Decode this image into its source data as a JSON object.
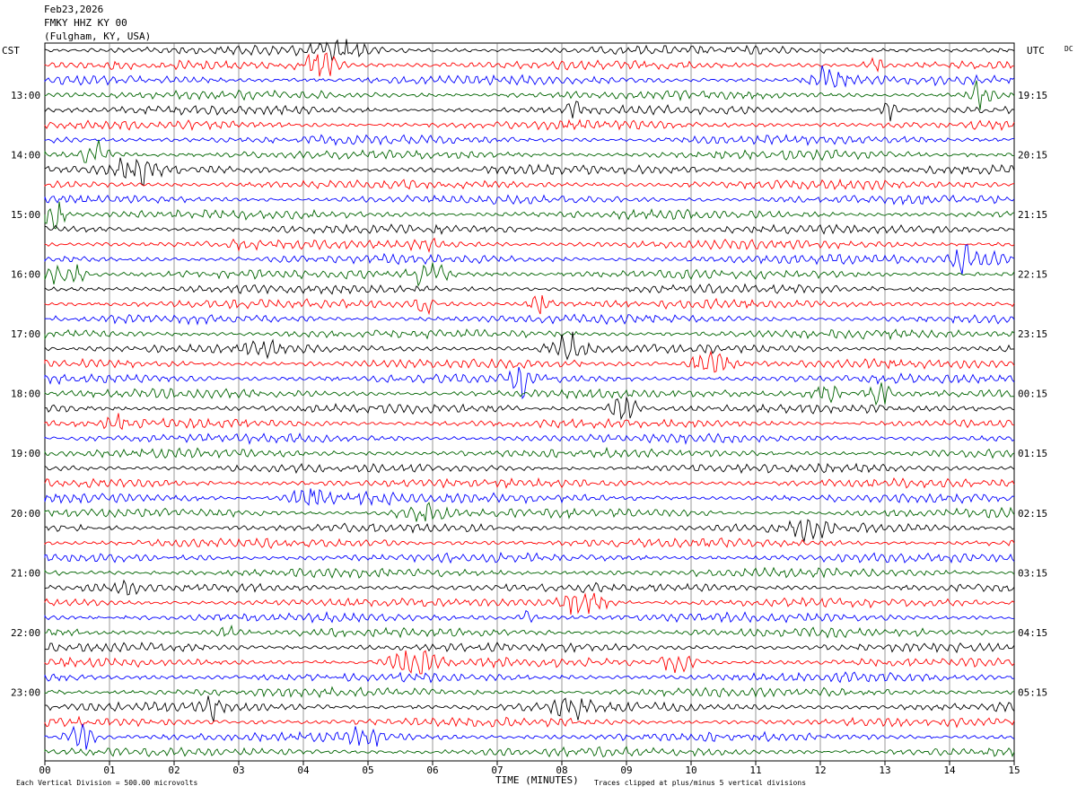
{
  "header": {
    "date": "Feb23,2026",
    "station": "FMKY HHZ KY 00",
    "location": "(Fulgham, KY, USA)"
  },
  "left_tz": "CST",
  "right_tz": "UTC",
  "right_corner": "DC",
  "footer": {
    "scale_note": "Each Vertical Division =  500.00 microvolts",
    "xlabel": "TIME (MINUTES)",
    "clip_note": "Traces clipped at plus/minus 5 vertical divisions"
  },
  "chart_data": {
    "type": "helicorder",
    "x_ticks": [
      "00",
      "01",
      "02",
      "03",
      "04",
      "05",
      "06",
      "07",
      "08",
      "09",
      "10",
      "11",
      "12",
      "13",
      "14",
      "15"
    ],
    "x_range": [
      0,
      15
    ],
    "left_hour_labels": [
      "13:00",
      "14:00",
      "15:00",
      "16:00",
      "17:00",
      "18:00",
      "19:00",
      "20:00",
      "21:00",
      "22:00",
      "23:00"
    ],
    "right_hour_labels": [
      "19:15",
      "20:15",
      "21:15",
      "22:15",
      "23:15",
      "00:15",
      "01:15",
      "02:15",
      "03:15",
      "04:15",
      "05:15"
    ],
    "trace_colors": [
      "#000000",
      "#ff0000",
      "#0000ff",
      "#006400"
    ],
    "trace_count": 48,
    "lines_per_hour": 4,
    "minutes_per_line": 15
  }
}
